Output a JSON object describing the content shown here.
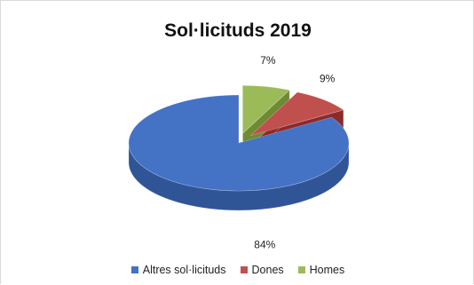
{
  "chart_data": {
    "type": "pie",
    "title": "Sol·licituds 2019",
    "slices": [
      {
        "name": "Altres sol·licituds",
        "value": 84,
        "label": "84%",
        "color": "#4472C4",
        "side": "#2F5597"
      },
      {
        "name": "Dones",
        "value": 9,
        "label": "9%",
        "color": "#C0504D",
        "side": "#8C2A28"
      },
      {
        "name": "Homes",
        "value": 7,
        "label": "7%",
        "color": "#9BBB59",
        "side": "#6E8B33"
      }
    ],
    "exploded": [
      "Dones",
      "Homes"
    ],
    "style": "3d",
    "legend_position": "bottom"
  }
}
